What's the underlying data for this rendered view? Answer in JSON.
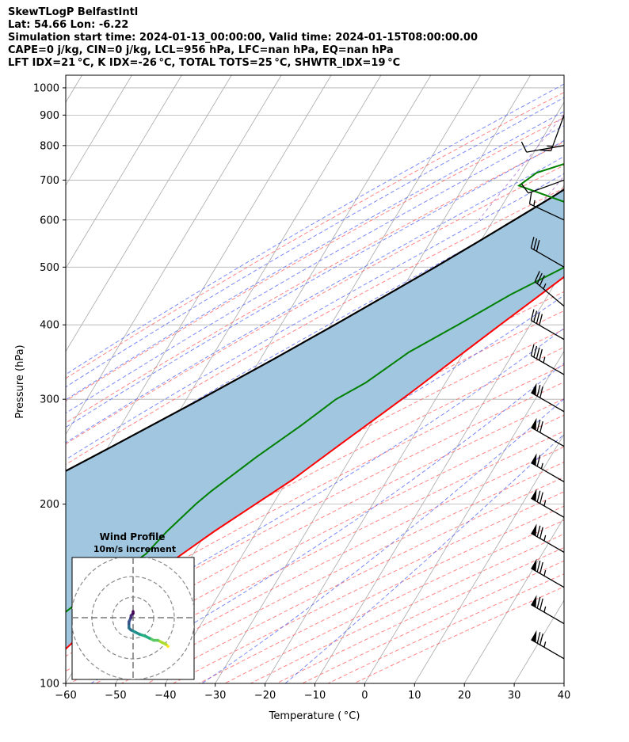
{
  "header": {
    "line1": "SkewTLogP BelfastIntl",
    "line2": "Lat: 54.66   Lon: -6.22",
    "line3": "Simulation start time: 2024-01-13_00:00:00, Valid time: 2024-01-15T08:00:00.00",
    "line4": "CAPE=0 j/kg, CIN=0 j/kg, LCL=956 hPa, LFC=nan hPa, EQ=nan hPa",
    "line5": "LFT IDX=21 °C, K IDX=-26 °C, TOTAL TOTS=25 °C, SHWTR_IDX=19 °C"
  },
  "chart_data": {
    "type": "line",
    "xlabel": "Temperature ( °C)",
    "ylabel": "Pressure (hPa)",
    "xlim": [
      -60,
      40
    ],
    "ylim": [
      1050,
      100
    ],
    "y_scale": "log",
    "x_ticks": [
      -60,
      -50,
      -40,
      -30,
      -20,
      -10,
      0,
      10,
      20,
      30,
      40
    ],
    "y_ticks": [
      100,
      200,
      300,
      400,
      500,
      600,
      700,
      800,
      900,
      1000
    ],
    "y_tick_labels": [
      "100",
      "200",
      "300",
      "400",
      "500",
      "600",
      "700",
      "800",
      "900",
      "1000"
    ],
    "x_tick_labels": [
      "−60",
      "−50",
      "−40",
      "−30",
      "−20",
      "−10",
      "0",
      "10",
      "20",
      "30",
      "40"
    ],
    "colors": {
      "temperature": "#ff0000",
      "dewpoint": "#008000",
      "parcel": "#000000",
      "shading": "#a1c6df",
      "isotherm": "#a9a9a9",
      "dry_adiabat": "#ff6666",
      "moist_adiabat": "#5b6cf5",
      "mixing_ratio": "#8f3fc7"
    },
    "series": [
      {
        "name": "",
        "kind": "temperature",
        "pressure": [
          1008,
          990,
          970,
          940,
          900,
          870,
          840,
          800,
          760,
          730,
          700,
          650,
          600,
          550,
          500,
          450,
          400,
          350,
          310,
          280,
          250,
          220,
          200,
          180,
          160,
          140,
          125,
          115,
          108,
          100
        ],
        "temperature": [
          1.3,
          0.8,
          -0.5,
          -2.0,
          -3.1,
          -3.5,
          -3.2,
          -2.6,
          -1.3,
          -0.5,
          0.1,
          -0.9,
          -2.5,
          -4.5,
          -7.5,
          -11.5,
          -16.0,
          -21.0,
          -25.5,
          -29.5,
          -34.0,
          -39.0,
          -43.5,
          -48.5,
          -53.5,
          -58.5,
          -62.0,
          -64.0,
          -65.5,
          -66.5
        ]
      },
      {
        "name": "",
        "kind": "dewpoint",
        "pressure": [
          1008,
          995,
          975,
          950,
          925,
          900,
          870,
          840,
          800,
          760,
          720,
          685,
          640,
          600,
          550,
          500,
          450,
          400,
          360,
          320,
          300,
          270,
          240,
          210,
          200,
          180,
          165,
          150,
          140,
          125,
          110,
          100
        ],
        "temperature": [
          -1.2,
          -2.6,
          -3.5,
          -3.5,
          -3.9,
          -4.8,
          -6.5,
          -9.0,
          -13.0,
          -20.0,
          -27.0,
          -29.0,
          -17.0,
          -5.5,
          -5.0,
          -10.0,
          -17.5,
          -24.5,
          -31.0,
          -36.0,
          -40.0,
          -44.0,
          -49.0,
          -54.0,
          -55.5,
          -58.0,
          -59.5,
          -63.5,
          -66.5,
          -70.5,
          -74.0,
          -76.5
        ]
      },
      {
        "name": "",
        "kind": "parcel",
        "pressure": [
          1008,
          980,
          956,
          940,
          920,
          900,
          870,
          840,
          800,
          760,
          720,
          700,
          650,
          600,
          550,
          500,
          450,
          400,
          350,
          300,
          250,
          200,
          150,
          100
        ],
        "temperature": [
          0.0,
          -2.4,
          -4.0,
          -4.6,
          -5.5,
          -6.4,
          -7.8,
          -9.2,
          -11.4,
          -13.7,
          -16.2,
          -17.6,
          -21.4,
          -25.8,
          -30.6,
          -36.0,
          -42.2,
          -49.2,
          -57.4,
          -67.2,
          -79.2,
          -94.2,
          -114.0,
          -143.0
        ]
      }
    ],
    "wind_barbs": {
      "pressure": [
        110,
        126,
        145,
        166,
        190,
        218,
        250,
        286,
        330,
        378,
        430,
        500,
        600,
        700,
        800,
        900
      ],
      "speed_kt": [
        75,
        75,
        75,
        75,
        75,
        65,
        70,
        70,
        45,
        40,
        35,
        30,
        15,
        10,
        10,
        15
      ],
      "direction_deg": [
        300,
        300,
        300,
        300,
        300,
        300,
        300,
        300,
        300,
        300,
        310,
        300,
        295,
        250,
        260,
        200
      ]
    },
    "hodograph": {
      "title_line1": "Wind Profile",
      "title_line2": "10m/s increment",
      "u": [
        17,
        16,
        14,
        12,
        10,
        8,
        6,
        3,
        1,
        -1,
        -2,
        -2,
        -2,
        -1,
        -1,
        0,
        0
      ],
      "v": [
        -14,
        -13,
        -12,
        -11,
        -11,
        -10,
        -9,
        -8,
        -7,
        -6,
        -5,
        -3,
        -2,
        0,
        1,
        2,
        3
      ],
      "colormap": "viridis"
    }
  }
}
